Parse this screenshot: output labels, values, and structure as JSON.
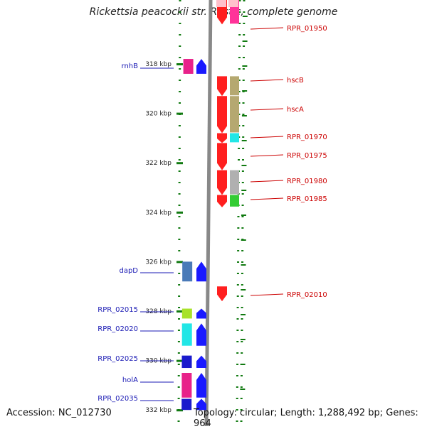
{
  "title": "Rickettsia peacockii str. Rustic, complete genome",
  "footer": {
    "accession": "Accession: NC_012730",
    "stats": "Topology: circular; Length: 1,288,492 bp; Genes: 964"
  },
  "ticks": [
    {
      "label": "318 kbp",
      "kbp": 318
    },
    {
      "label": "320 kbp",
      "kbp": 320
    },
    {
      "label": "322 kbp",
      "kbp": 322
    },
    {
      "label": "324 kbp",
      "kbp": 324
    },
    {
      "label": "326 kbp",
      "kbp": 326
    },
    {
      "label": "328 kbp",
      "kbp": 328
    },
    {
      "label": "330 kbp",
      "kbp": 330
    },
    {
      "label": "332 kbp",
      "kbp": 332
    }
  ],
  "left_genes": [
    {
      "name": "rnhB",
      "color": "#e8228a",
      "start_kbp": 317.8,
      "end_kbp": 318.4
    },
    {
      "name": "dapD",
      "color": "#4a7ab8",
      "start_kbp": 326.0,
      "end_kbp": 326.8
    },
    {
      "name": "RPR_02015",
      "color": "#a8e22a",
      "start_kbp": 327.9,
      "end_kbp": 328.3
    },
    {
      "name": "RPR_02020",
      "color": "#22e6e6",
      "start_kbp": 328.5,
      "end_kbp": 329.4
    },
    {
      "name": "RPR_02025",
      "color": "#1a1acc",
      "start_kbp": 329.8,
      "end_kbp": 330.3
    },
    {
      "name": "holA",
      "color": "#e8228a",
      "start_kbp": 330.5,
      "end_kbp": 331.5
    },
    {
      "name": "RPR_02035",
      "color": "#1a1acc",
      "start_kbp": 331.55,
      "end_kbp": 332.0
    }
  ],
  "right_genes": [
    {
      "name": "RPR_01950",
      "color": "#ff3399",
      "start_kbp": 315.2,
      "end_kbp": 316.4
    },
    {
      "name": "hscB",
      "color": "#b5a870",
      "start_kbp": 318.5,
      "end_kbp": 319.3
    },
    {
      "name": "hscA",
      "color": "#b5a870",
      "start_kbp": 319.3,
      "end_kbp": 320.8
    },
    {
      "name": "RPR_01970",
      "color": "#22e6e6",
      "start_kbp": 320.8,
      "end_kbp": 321.2
    },
    {
      "name": "RPR_01975",
      "color": "#ff1f1f",
      "start_kbp": 321.2,
      "end_kbp": 322.3
    },
    {
      "name": "RPR_01980",
      "color": "#b0b0b0",
      "start_kbp": 322.3,
      "end_kbp": 323.3
    },
    {
      "name": "RPR_01985",
      "color": "#33cc33",
      "start_kbp": 323.3,
      "end_kbp": 323.8
    },
    {
      "name": "RPR_02010",
      "color": "#ff1f1f",
      "start_kbp": 327.0,
      "end_kbp": 327.6
    }
  ],
  "colors": {
    "left_label": "#1a1ab4",
    "right_label": "#cc0000",
    "tick": "#117a11",
    "backbone": "#888888",
    "forward_strand": "#1a1aff",
    "reverse_strand": "#ff1f1f"
  }
}
